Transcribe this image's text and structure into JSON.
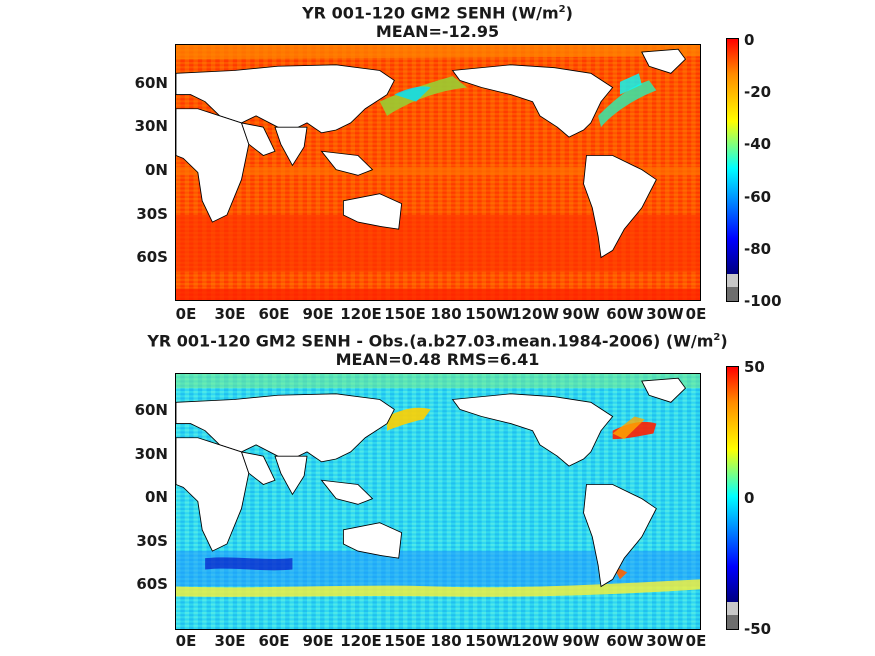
{
  "panels": [
    {
      "title_line1": "YR 001-120 GM2  SENH (W/m",
      "title_sup": "2",
      "title_close": ")",
      "title_line2": "MEAN=-12.95",
      "colorbar_ticks": [
        "0",
        "-20",
        "-40",
        "-60",
        "-80",
        "-100"
      ],
      "colorbar_range": [
        -100,
        0
      ],
      "field": "mostly orange/red ocean with cyan-green western boundary currents"
    },
    {
      "title_line1": "YR 001-120 GM2 SENH - Obs.(a.b27.03.mean.1984-2006) (W/m",
      "title_sup": "2",
      "title_close": ")",
      "title_line2": "MEAN=0.48 RMS=6.41",
      "colorbar_ticks": [
        "50",
        "0",
        "-50"
      ],
      "colorbar_range": [
        -50,
        50
      ],
      "field": "mostly cyan ocean with yellow/red Kuroshio and Gulf Stream anomalies"
    }
  ],
  "lat_labels": [
    "60N",
    "30N",
    "0N",
    "30S",
    "60S"
  ],
  "lon_labels": [
    "0E",
    "30E",
    "60E",
    "90E",
    "120E",
    "150E",
    "180",
    "150W",
    "120W",
    "90W",
    "60W",
    "30W",
    "0E"
  ],
  "colormap": [
    "#ff0000",
    "#ff8c00",
    "#ffff00",
    "#00ffff",
    "#0000ff",
    "#00007f"
  ]
}
